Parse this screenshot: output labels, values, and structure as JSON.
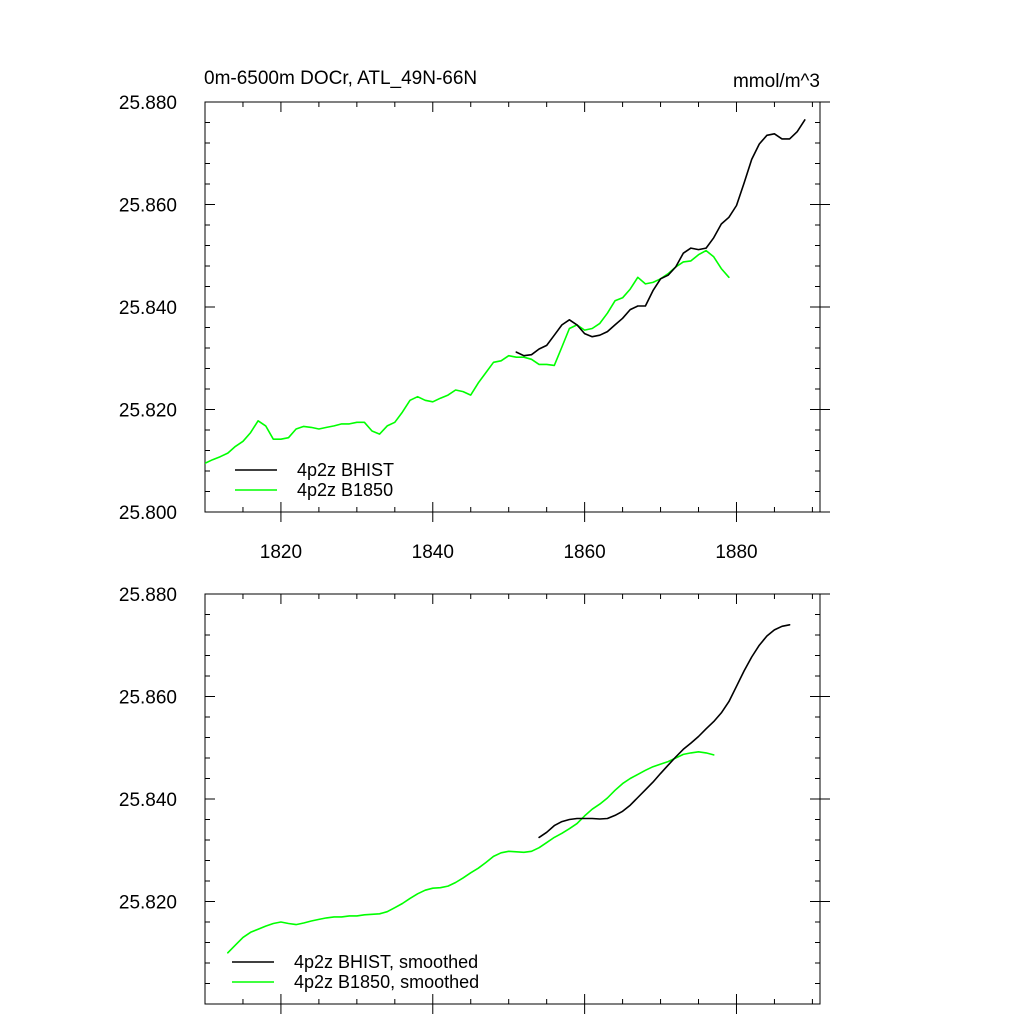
{
  "chart_data": [
    {
      "type": "line",
      "title": "0m-6500m DOCr, ATL_49N-66N",
      "units": "mmol/m^3",
      "xlabel": "",
      "ylabel": "",
      "xlim": [
        1810,
        1891
      ],
      "ylim": [
        25.8,
        25.88
      ],
      "x_ticks": [
        1820,
        1840,
        1860,
        1880
      ],
      "x_tick_labels": [
        "1820",
        "1840",
        "1860",
        "1880"
      ],
      "y_ticks": [
        25.8,
        25.82,
        25.84,
        25.86,
        25.88
      ],
      "y_tick_labels": [
        "25.800",
        "25.820",
        "25.840",
        "25.860",
        "25.880"
      ],
      "legend_position": "bottom-left",
      "series": [
        {
          "name": "4p2z BHIST",
          "color": "#000000",
          "x": [
            1851,
            1852,
            1853,
            1854,
            1855,
            1856,
            1857,
            1858,
            1859,
            1860,
            1861,
            1862,
            1863,
            1864,
            1865,
            1866,
            1867,
            1868,
            1869,
            1870,
            1871,
            1872,
            1873,
            1874,
            1875,
            1876,
            1877,
            1878,
            1879,
            1880,
            1881,
            1882,
            1883,
            1884,
            1885,
            1886,
            1887,
            1888,
            1889
          ],
          "values": [
            25.8312,
            25.8305,
            25.8307,
            25.8318,
            25.8325,
            25.8345,
            25.8365,
            25.8375,
            25.8365,
            25.8348,
            25.8342,
            25.8345,
            25.8352,
            25.8365,
            25.8378,
            25.8395,
            25.8402,
            25.8402,
            25.8432,
            25.8455,
            25.8462,
            25.8478,
            25.8505,
            25.8515,
            25.8512,
            25.8515,
            25.8535,
            25.8562,
            25.8575,
            25.8598,
            25.8642,
            25.8688,
            25.8718,
            25.8735,
            25.8738,
            25.8728,
            25.8728,
            25.8742,
            25.8765
          ]
        },
        {
          "name": "4p2z B1850",
          "color": "#00ff00",
          "x": [
            1810,
            1811,
            1812,
            1813,
            1814,
            1815,
            1816,
            1817,
            1818,
            1819,
            1820,
            1821,
            1822,
            1823,
            1824,
            1825,
            1826,
            1827,
            1828,
            1829,
            1830,
            1831,
            1832,
            1833,
            1834,
            1835,
            1836,
            1837,
            1838,
            1839,
            1840,
            1841,
            1842,
            1843,
            1844,
            1845,
            1846,
            1847,
            1848,
            1849,
            1850,
            1851,
            1852,
            1853,
            1854,
            1855,
            1856,
            1857,
            1858,
            1859,
            1860,
            1861,
            1862,
            1863,
            1864,
            1865,
            1866,
            1867,
            1868,
            1869,
            1870,
            1871,
            1872,
            1873,
            1874,
            1875,
            1876,
            1877,
            1878,
            1879
          ],
          "values": [
            25.8095,
            25.8102,
            25.8108,
            25.8115,
            25.8128,
            25.8138,
            25.8155,
            25.8178,
            25.8168,
            25.8142,
            25.8142,
            25.8145,
            25.8162,
            25.8167,
            25.8165,
            25.8162,
            25.8165,
            25.8168,
            25.8172,
            25.8172,
            25.8175,
            25.8175,
            25.8158,
            25.8152,
            25.8168,
            25.8175,
            25.8195,
            25.8218,
            25.8225,
            25.8218,
            25.8215,
            25.8222,
            25.8228,
            25.8238,
            25.8235,
            25.8228,
            25.8252,
            25.8272,
            25.8292,
            25.8295,
            25.8305,
            25.8302,
            25.8302,
            25.8298,
            25.8288,
            25.8288,
            25.8286,
            25.8322,
            25.8358,
            25.8365,
            25.8355,
            25.8358,
            25.8368,
            25.8388,
            25.8412,
            25.8418,
            25.8435,
            25.8458,
            25.8445,
            25.8448,
            25.8455,
            25.8465,
            25.8478,
            25.8488,
            25.849,
            25.8502,
            25.851,
            25.8498,
            25.8475,
            25.8458
          ]
        }
      ]
    },
    {
      "type": "line",
      "title": "",
      "xlabel": "",
      "ylabel": "",
      "xlim": [
        1810,
        1891
      ],
      "ylim": [
        25.8,
        25.88
      ],
      "x_ticks": [
        1820,
        1840,
        1860,
        1880
      ],
      "y_ticks": [
        25.82,
        25.84,
        25.86,
        25.88
      ],
      "y_tick_labels": [
        "25.820",
        "25.840",
        "25.860",
        "25.880"
      ],
      "legend_position": "bottom-left",
      "series": [
        {
          "name": "4p2z BHIST, smoothed",
          "color": "#000000",
          "x": [
            1854,
            1855,
            1856,
            1857,
            1858,
            1859,
            1860,
            1861,
            1862,
            1863,
            1864,
            1865,
            1866,
            1867,
            1868,
            1869,
            1870,
            1871,
            1872,
            1873,
            1874,
            1875,
            1876,
            1877,
            1878,
            1879,
            1880,
            1881,
            1882,
            1883,
            1884,
            1885,
            1886,
            1887
          ],
          "values": [
            25.8325,
            25.8335,
            25.8348,
            25.8356,
            25.836,
            25.8362,
            25.8362,
            25.8362,
            25.8361,
            25.8362,
            25.8368,
            25.8376,
            25.8388,
            25.8403,
            25.8418,
            25.8433,
            25.845,
            25.8466,
            25.8482,
            25.8497,
            25.8509,
            25.8522,
            25.8537,
            25.8551,
            25.8568,
            25.859,
            25.862,
            25.865,
            25.8677,
            25.87,
            25.8718,
            25.873,
            25.8737,
            25.874
          ]
        },
        {
          "name": "4p2z B1850, smoothed",
          "color": "#00ff00",
          "x": [
            1813,
            1814,
            1815,
            1816,
            1817,
            1818,
            1819,
            1820,
            1821,
            1822,
            1823,
            1824,
            1825,
            1826,
            1827,
            1828,
            1829,
            1830,
            1831,
            1832,
            1833,
            1834,
            1835,
            1836,
            1837,
            1838,
            1839,
            1840,
            1841,
            1842,
            1843,
            1844,
            1845,
            1846,
            1847,
            1848,
            1849,
            1850,
            1851,
            1852,
            1853,
            1854,
            1855,
            1856,
            1857,
            1858,
            1859,
            1860,
            1861,
            1862,
            1863,
            1864,
            1865,
            1866,
            1867,
            1868,
            1869,
            1870,
            1871,
            1872,
            1873,
            1874,
            1875,
            1876,
            1877
          ],
          "values": [
            25.81,
            25.8115,
            25.813,
            25.814,
            25.8146,
            25.8152,
            25.8157,
            25.816,
            25.8157,
            25.8155,
            25.8158,
            25.8162,
            25.8165,
            25.8168,
            25.817,
            25.817,
            25.8172,
            25.8172,
            25.8174,
            25.8175,
            25.8176,
            25.818,
            25.8188,
            25.8196,
            25.8206,
            25.8215,
            25.8222,
            25.8226,
            25.8227,
            25.823,
            25.8237,
            25.8246,
            25.8256,
            25.8265,
            25.8276,
            25.8288,
            25.8295,
            25.8298,
            25.8297,
            25.8296,
            25.8298,
            25.8305,
            25.8315,
            25.8325,
            25.8333,
            25.8342,
            25.8352,
            25.8367,
            25.838,
            25.839,
            25.8402,
            25.8417,
            25.843,
            25.844,
            25.8448,
            25.8456,
            25.8463,
            25.8468,
            25.8473,
            25.848,
            25.8487,
            25.849,
            25.8492,
            25.849,
            25.8486
          ]
        }
      ]
    }
  ]
}
